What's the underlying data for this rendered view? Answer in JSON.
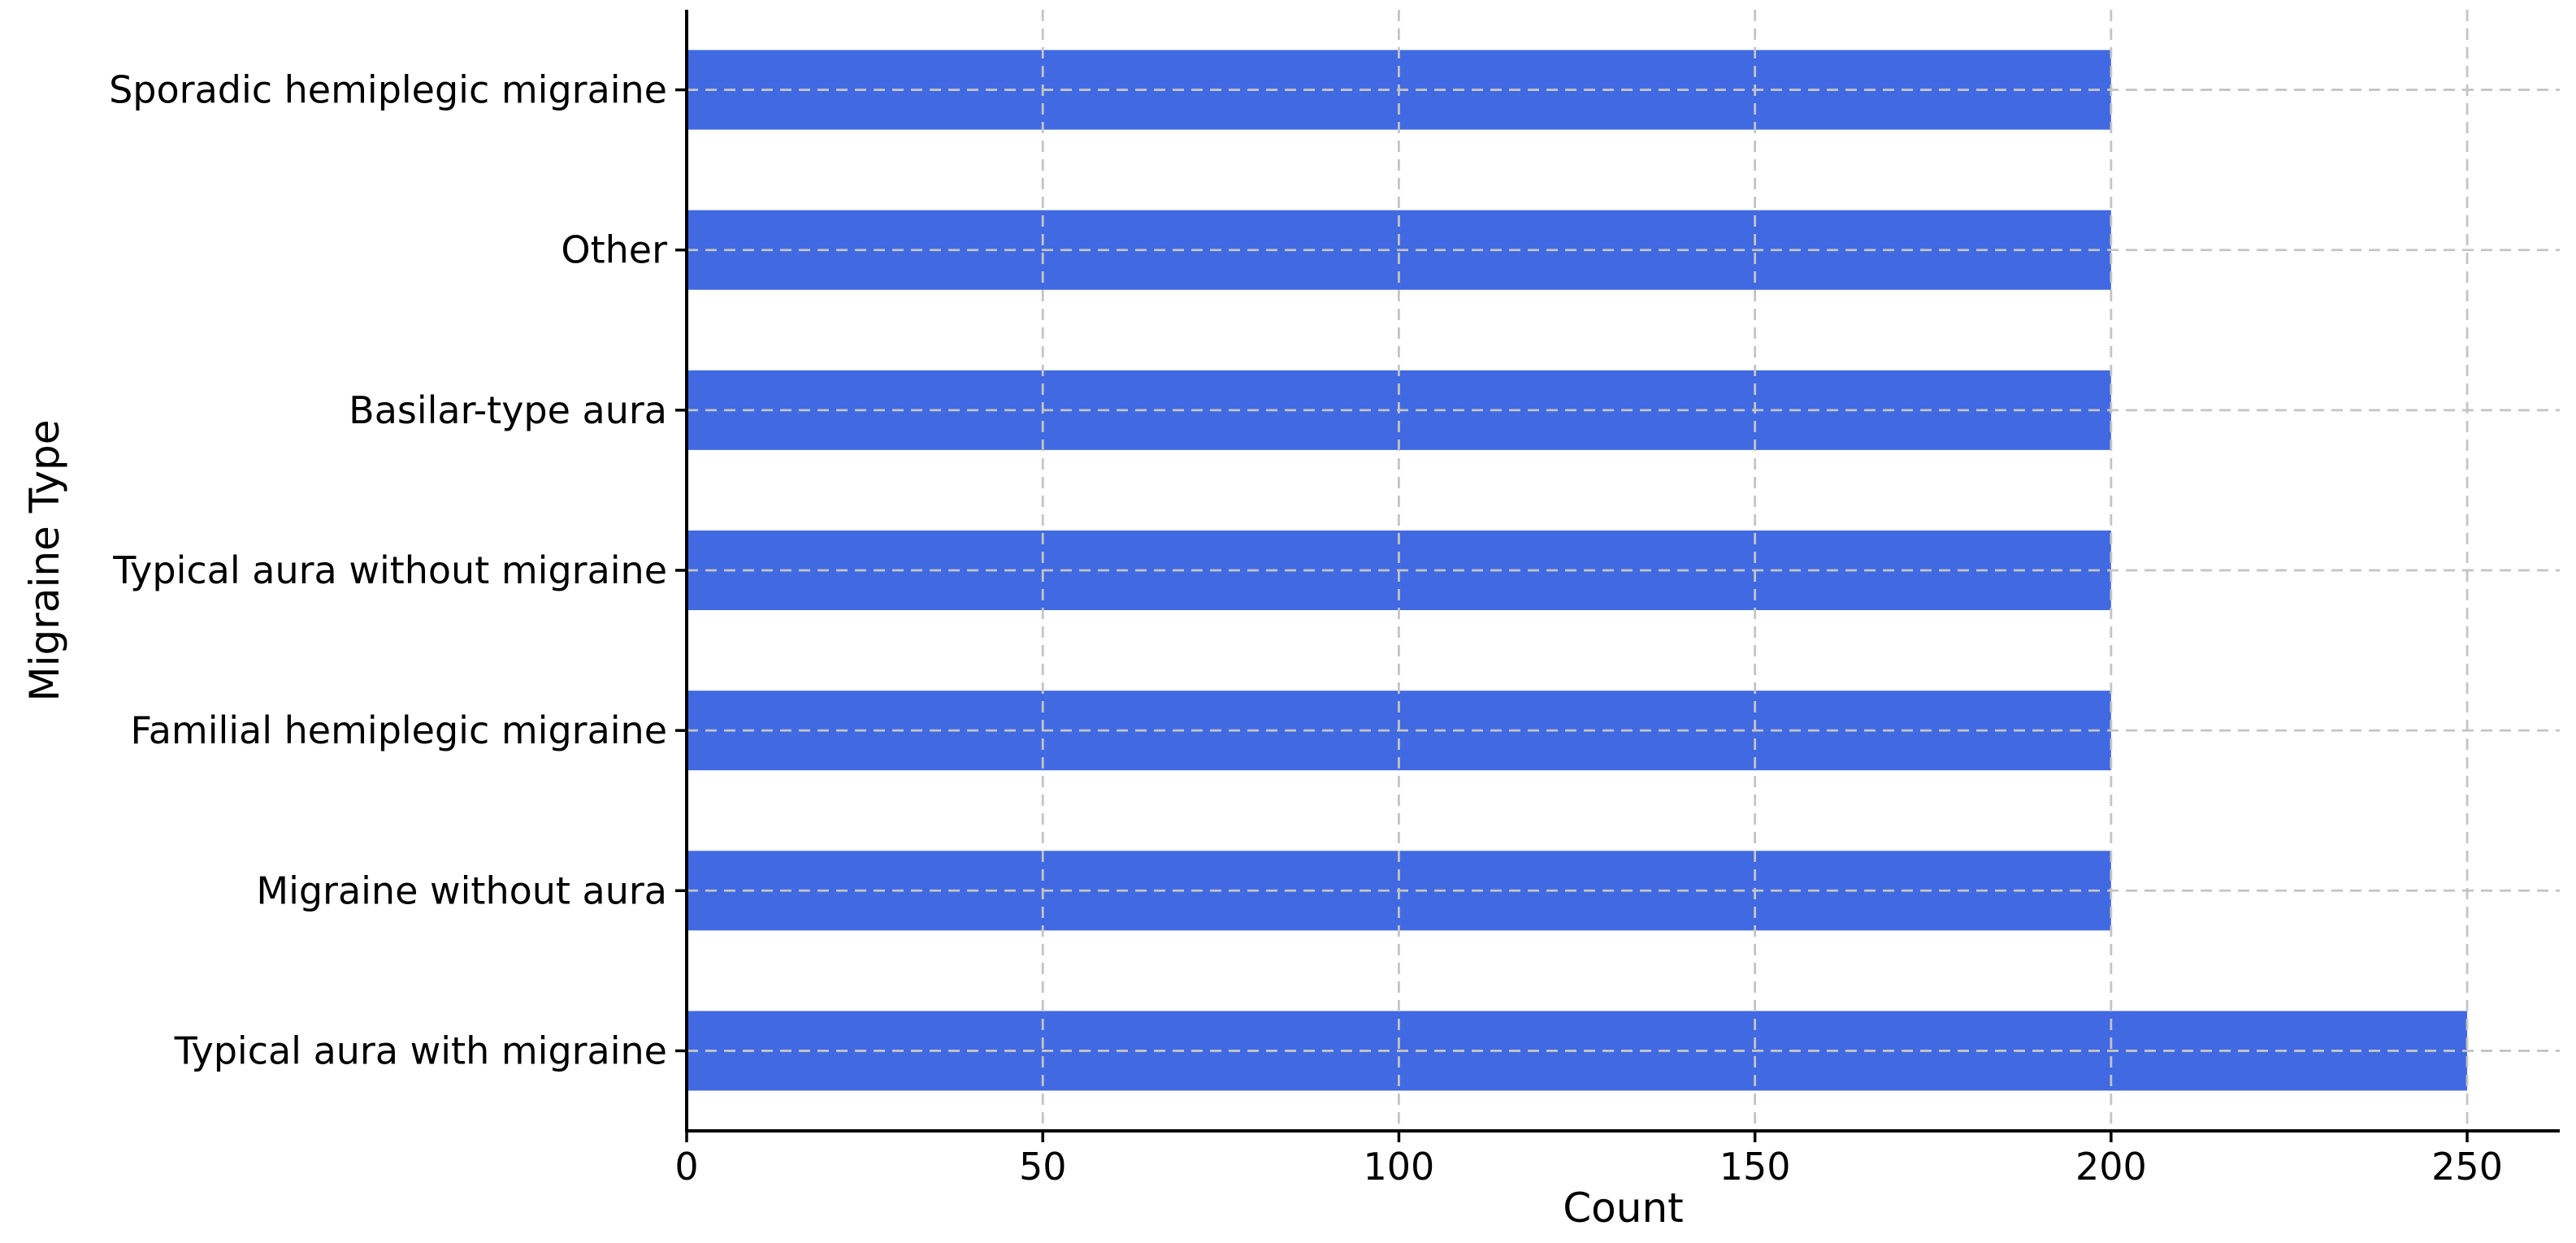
{
  "chart_data": {
    "type": "bar",
    "orientation": "horizontal",
    "title": "",
    "xlabel": "Count",
    "ylabel": "Migraine Type",
    "categories": [
      "Sporadic hemiplegic migraine",
      "Other",
      "Basilar-type aura",
      "Typical aura without migraine",
      "Familial hemiplegic migraine",
      "Migraine without aura",
      "Typical aura with migraine"
    ],
    "category_order": "top_to_bottom",
    "values": [
      200,
      200,
      200,
      200,
      200,
      200,
      250
    ],
    "xticks": [
      0,
      50,
      100,
      150,
      200,
      250
    ],
    "xtick_labels": [
      "0",
      "50",
      "100",
      "150",
      "200",
      "250"
    ],
    "xlim": [
      0,
      263
    ],
    "grid": {
      "style": "dashed",
      "axes": "both"
    },
    "legend": null,
    "colors": {
      "bar": "#4169E1",
      "grid": "#c4c4c4",
      "axis": "#000000",
      "text": "#000000",
      "background": "#ffffff"
    }
  }
}
